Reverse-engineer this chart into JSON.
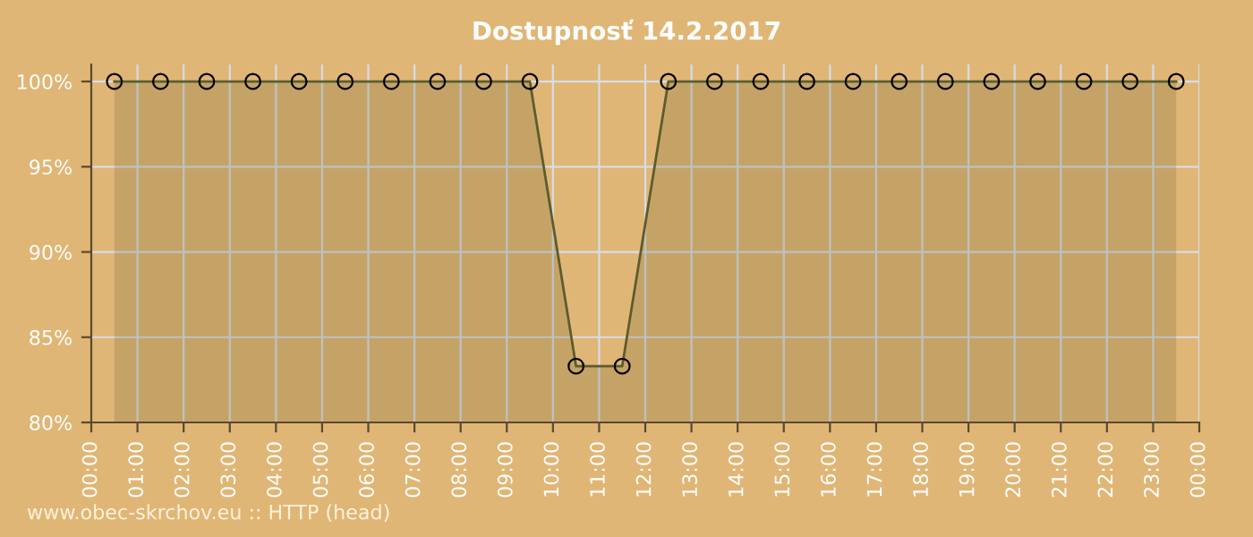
{
  "chart_data": {
    "type": "area",
    "title": "Dostupnosť 14.2.2017",
    "x": [
      0.5,
      1.5,
      2.5,
      3.5,
      4.5,
      5.5,
      6.5,
      7.5,
      8.5,
      9.5,
      10.5,
      11.5,
      12.5,
      13.5,
      14.5,
      15.5,
      16.5,
      17.5,
      18.5,
      19.5,
      20.5,
      21.5,
      22.5,
      23.5
    ],
    "series": [
      {
        "color": "#5c5c2e",
        "values": [
          100,
          100,
          100,
          100,
          100,
          100,
          100,
          100,
          100,
          100,
          83.3,
          83.3,
          100,
          100,
          100,
          100,
          100,
          100,
          100,
          100,
          100,
          100,
          100,
          100
        ]
      }
    ],
    "xlim": [
      0,
      24
    ],
    "xticks": [
      {
        "value": 0,
        "label": "00:00"
      },
      {
        "value": 1,
        "label": "01:00"
      },
      {
        "value": 2,
        "label": "02:00"
      },
      {
        "value": 3,
        "label": "03:00"
      },
      {
        "value": 4,
        "label": "04:00"
      },
      {
        "value": 5,
        "label": "05:00"
      },
      {
        "value": 6,
        "label": "06:00"
      },
      {
        "value": 7,
        "label": "07:00"
      },
      {
        "value": 8,
        "label": "08:00"
      },
      {
        "value": 9,
        "label": "09:00"
      },
      {
        "value": 10,
        "label": "10:00"
      },
      {
        "value": 11,
        "label": "11:00"
      },
      {
        "value": 12,
        "label": "12:00"
      },
      {
        "value": 13,
        "label": "13:00"
      },
      {
        "value": 14,
        "label": "14:00"
      },
      {
        "value": 15,
        "label": "15:00"
      },
      {
        "value": 16,
        "label": "16:00"
      },
      {
        "value": 17,
        "label": "17:00"
      },
      {
        "value": 18,
        "label": "18:00"
      },
      {
        "value": 19,
        "label": "19:00"
      },
      {
        "value": 20,
        "label": "20:00"
      },
      {
        "value": 21,
        "label": "21:00"
      },
      {
        "value": 22,
        "label": "22:00"
      },
      {
        "value": 23,
        "label": "23:00"
      },
      {
        "value": 24,
        "label": "00:00"
      }
    ],
    "ylim": [
      80,
      101
    ],
    "yticks": [
      {
        "value": 80,
        "label": "80%"
      },
      {
        "value": 85,
        "label": "85%"
      },
      {
        "value": 90,
        "label": "90%"
      },
      {
        "value": 95,
        "label": "95%"
      },
      {
        "value": 100,
        "label": "100%"
      }
    ],
    "grid": true,
    "marker": "circle",
    "line_style": "solid",
    "annotations": [
      "www.obec-skrchov.eu :: HTTP (head)"
    ]
  }
}
